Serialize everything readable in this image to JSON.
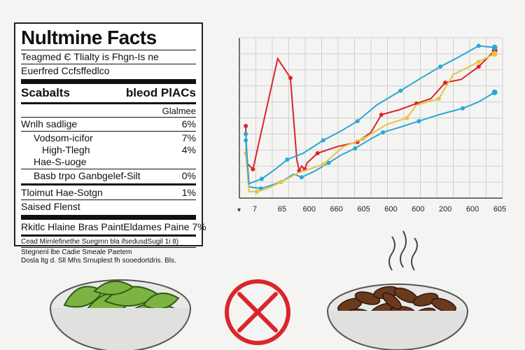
{
  "label": {
    "title": "Nultmine Facts",
    "line1": "Teagmed Є Tlialty is Fhgn-Is ne",
    "line2": "Euerfred Ccfsffedlco",
    "header_left": "Scabalts",
    "header_right": "bleod PlACs",
    "col_header": "Glalmee",
    "rows": [
      {
        "name": "Wnlh sadlige",
        "value": "6%"
      },
      {
        "name": "Vodsom-icifor",
        "value": "7%"
      },
      {
        "name": "High-Tlegh",
        "value": "4%"
      },
      {
        "name": "Hae-S-uoge",
        "value": ""
      }
    ],
    "row_b": {
      "name": "Basb trpo Ganbgelef-Silt",
      "value": "0%"
    },
    "row_c": {
      "name": "Tloimut Hae-Sotgn",
      "value": "1%"
    },
    "row_d": {
      "name": "Saised Flenst"
    },
    "row_e": {
      "name": "Rkitlc Hlaine Bras Paint",
      "value": "Eldames Paine 7%"
    },
    "foot1": "Cead Mirnlefinethe Suegrnn bla ifsedusdSugil 1i 8)",
    "foot2": "Stegnenl lbe Cadie Smeale Paetem",
    "foot3": "Dosla ltg d. Sll Mhs Srnuplest fh sooedortdris. Bls."
  },
  "chart_data": {
    "type": "line",
    "categories": [
      "7",
      "65",
      "600",
      "660",
      "605",
      "600",
      "600",
      "200",
      "600",
      "605"
    ],
    "xlabel": "",
    "ylabel": "",
    "ylim": [
      0,
      100
    ],
    "grid": true,
    "series": [
      {
        "color": "#d9262b",
        "values": [
          [
            8,
            45
          ],
          [
            9,
            22
          ],
          [
            17,
            18
          ],
          [
            48,
            87
          ],
          [
            64,
            75
          ],
          [
            72,
            24
          ],
          [
            75,
            17
          ],
          [
            78,
            20
          ],
          [
            82,
            18
          ],
          [
            85,
            22
          ],
          [
            98,
            28
          ],
          [
            122,
            32
          ],
          [
            148,
            35
          ],
          [
            165,
            41
          ],
          [
            178,
            52
          ],
          [
            200,
            55
          ],
          [
            222,
            59
          ],
          [
            240,
            62
          ],
          [
            258,
            72
          ],
          [
            278,
            74
          ],
          [
            300,
            82
          ],
          [
            320,
            92
          ]
        ]
      },
      {
        "color": "#2aa7d6",
        "values": [
          [
            8,
            40
          ],
          [
            12,
            7
          ],
          [
            27,
            6
          ],
          [
            40,
            8
          ],
          [
            52,
            10
          ],
          [
            68,
            15
          ],
          [
            78,
            13
          ],
          [
            95,
            17
          ],
          [
            112,
            22
          ],
          [
            128,
            27
          ],
          [
            145,
            31
          ],
          [
            165,
            37
          ],
          [
            180,
            41
          ],
          [
            200,
            44
          ],
          [
            225,
            48
          ],
          [
            250,
            52
          ],
          [
            280,
            56
          ],
          [
            300,
            60
          ],
          [
            320,
            66
          ]
        ]
      },
      {
        "color": "#e8c342",
        "values": [
          [
            8,
            28
          ],
          [
            12,
            4
          ],
          [
            22,
            4
          ],
          [
            35,
            6
          ],
          [
            52,
            10
          ],
          [
            75,
            16
          ],
          [
            105,
            21
          ],
          [
            130,
            32
          ],
          [
            155,
            37
          ],
          [
            185,
            46
          ],
          [
            210,
            50
          ],
          [
            222,
            58
          ],
          [
            250,
            62
          ],
          [
            268,
            77
          ],
          [
            300,
            85
          ],
          [
            320,
            90
          ]
        ]
      },
      {
        "color": "#2aa7d6",
        "values": [
          [
            8,
            36
          ],
          [
            12,
            9
          ],
          [
            28,
            12
          ],
          [
            45,
            18
          ],
          [
            60,
            24
          ],
          [
            80,
            28
          ],
          [
            105,
            36
          ],
          [
            128,
            42
          ],
          [
            148,
            48
          ],
          [
            172,
            58
          ],
          [
            202,
            67
          ],
          [
            228,
            75
          ],
          [
            252,
            82
          ],
          [
            275,
            88
          ],
          [
            300,
            95
          ],
          [
            320,
            94
          ]
        ]
      }
    ]
  },
  "food": {
    "left_bowl": "edamame-bowl",
    "right_bowl": "roasted-beans-bowl",
    "prohibited": "prohibited-icon",
    "colors": {
      "red": "#d9262b",
      "green": "#7cb342",
      "brown": "#6a3a1e"
    }
  }
}
